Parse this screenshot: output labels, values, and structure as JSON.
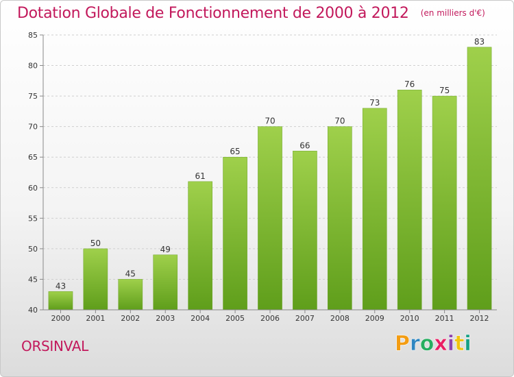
{
  "chart_data": {
    "type": "bar",
    "title": "Dotation Globale de Fonctionnement de 2000 à 2012",
    "subtitle": "(en milliers d'€)",
    "categories": [
      "2000",
      "2001",
      "2002",
      "2003",
      "2004",
      "2005",
      "2006",
      "2007",
      "2008",
      "2009",
      "2010",
      "2011",
      "2012"
    ],
    "values": [
      43,
      50,
      45,
      49,
      61,
      65,
      70,
      66,
      70,
      73,
      76,
      75,
      83
    ],
    "value_labels": [
      "43",
      "50",
      "45",
      "49",
      "61",
      "65",
      "70",
      "66",
      "70",
      "73",
      "76",
      "75",
      "83"
    ],
    "yticks": [
      40,
      45,
      50,
      55,
      60,
      65,
      70,
      75,
      80,
      85
    ],
    "ytick_labels": [
      "40",
      "45",
      "50",
      "55",
      "60",
      "65",
      "70",
      "75",
      "80",
      "85"
    ],
    "ylim": [
      40,
      85
    ],
    "xlabel": "",
    "ylabel": "",
    "grid": "horizontal-dashed",
    "bar_color": "#7cb82f",
    "bar_color_light": "#9fd04b"
  },
  "place_name": "ORSINVAL",
  "logo": {
    "letters": [
      "P",
      "r",
      "o",
      "x",
      "i",
      "t",
      "i"
    ]
  },
  "colors": {
    "title": "#c2185b",
    "grid": "#cfcfcf",
    "axis": "#888888"
  }
}
